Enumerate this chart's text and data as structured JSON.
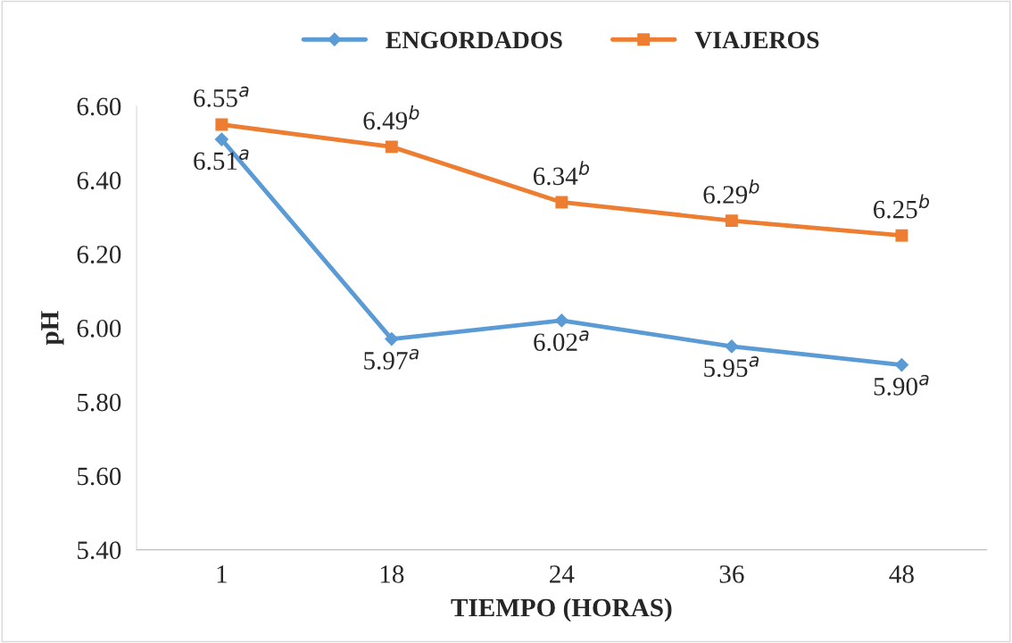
{
  "chart_data": {
    "type": "line",
    "xlabel": "TIEMPO (HORAS)",
    "ylabel": "pH",
    "categories": [
      "1",
      "18",
      "24",
      "36",
      "48"
    ],
    "series": [
      {
        "name": "ENGORDADOS",
        "color": "#5b9bd5",
        "marker": "diamond",
        "values": [
          6.51,
          5.97,
          6.02,
          5.95,
          5.9
        ],
        "value_labels": [
          "6.51$^{a}$",
          "5.97$^{a}$",
          "6.02$^{a}$",
          "5.95$^{a}$",
          "5.90$^{a}$"
        ]
      },
      {
        "name": "VIAJEROS",
        "color": "#ed7d31",
        "marker": "square",
        "values": [
          6.55,
          6.49,
          6.34,
          6.29,
          6.25
        ],
        "value_labels": [
          "6.55$^{a}$",
          "6.49$^{b}$",
          "6.34$^{b}$",
          "6.29$^{b}$",
          "6.25$^{b}$"
        ]
      }
    ],
    "ylim": [
      5.4,
      6.6
    ],
    "yticks": [
      {
        "value": 5.4,
        "label": "5.40"
      },
      {
        "value": 5.6,
        "label": "5.60"
      },
      {
        "value": 5.8,
        "label": "5.80"
      },
      {
        "value": 6.0,
        "label": "6.00"
      },
      {
        "value": 6.2,
        "label": "6.20"
      },
      {
        "value": 6.4,
        "label": "6.40"
      },
      {
        "value": 6.6,
        "label": "6.60"
      }
    ],
    "grid": false,
    "legend": "top",
    "line_style": "solid"
  }
}
